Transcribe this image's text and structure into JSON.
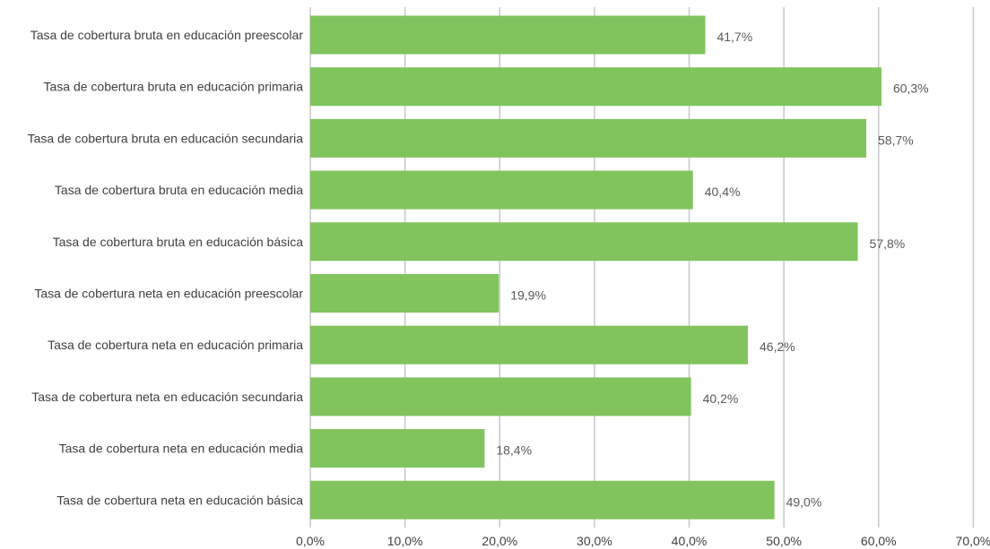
{
  "chart_data": {
    "type": "bar",
    "orientation": "horizontal",
    "categories": [
      "Tasa de cobertura bruta en educación preescolar",
      "Tasa de cobertura bruta en educación primaria",
      "Tasa de cobertura bruta en educación secundaria",
      "Tasa de cobertura bruta en educación media",
      "Tasa de cobertura bruta en educación básica",
      "Tasa de cobertura neta en educación preescolar",
      "Tasa de cobertura neta en educación primaria",
      "Tasa de cobertura neta en educación secundaria",
      "Tasa de cobertura neta en educación media",
      "Tasa de cobertura neta en educación básica"
    ],
    "values": [
      41.7,
      60.3,
      58.7,
      40.4,
      57.8,
      19.9,
      46.2,
      40.2,
      18.4,
      49.0
    ],
    "data_labels": [
      "41,7%",
      "60,3%",
      "58,7%",
      "40,4%",
      "57,8%",
      "19,9%",
      "46,2%",
      "40,2%",
      "18,4%",
      "49,0%"
    ],
    "x_ticks": [
      0,
      10,
      20,
      30,
      40,
      50,
      60,
      70
    ],
    "x_tick_labels": [
      "0,0%",
      "10,0%",
      "20,0%",
      "30,0%",
      "40,0%",
      "50,0%",
      "60,0%",
      "70,0%"
    ],
    "xlim": [
      0,
      70
    ],
    "title": "",
    "xlabel": "",
    "ylabel": "",
    "grid": true,
    "legend": "none",
    "bar_color": "#81c45e"
  }
}
